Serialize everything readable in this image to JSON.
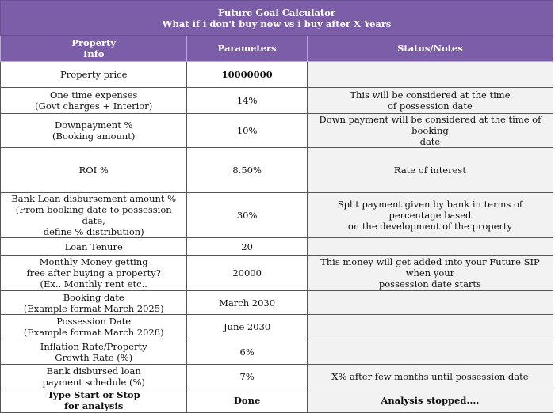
{
  "title_line1": "Future Goal Calculator",
  "title_line2": "What if i don't buy now vs i buy after X Years",
  "headers": {
    "col1": "Property\nInfo",
    "col2": "Parameters",
    "col3": "Status/Notes"
  },
  "rows": [
    {
      "info": "Property price",
      "param": "10000000",
      "note": ""
    },
    {
      "info": "One time expenses\n(Govt charges + Interior)",
      "param": "14%",
      "note": "This will be considered at the time\nof possession date"
    },
    {
      "info": "Downpayment %\n(Booking amount)",
      "param": "10%",
      "note": "Down payment will be considered at the time of booking\ndate"
    },
    {
      "info": "ROI %",
      "param": "8.50%",
      "note": "Rate of interest"
    },
    {
      "info": "Bank Loan disbursement amount %\n(From booking date to possession date,\ndefine % distribution)",
      "param": "30%",
      "note": "Split payment given by bank in terms of percentage based\non the development of the property"
    },
    {
      "info": "Loan Tenure",
      "param": "20",
      "note": ""
    },
    {
      "info": "Monthly Money getting\nfree after buying a property?\n(Ex.. Monthly rent etc..",
      "param": "20000",
      "note": "This money will get added into your Future SIP when your\npossession date starts"
    },
    {
      "info": "Booking date\n(Example format March 2025)",
      "param": "March 2030",
      "note": ""
    },
    {
      "info": "Possession Date\n(Example format March 2028)",
      "param": "June 2030",
      "note": ""
    },
    {
      "info": "Inflation Rate/Property\nGrowth Rate (%)",
      "param": "6%",
      "note": ""
    },
    {
      "info": "Bank disbursed loan\npayment schedule (%)",
      "param": "7%",
      "note": "X% after few months until possession date"
    },
    {
      "info": "Type Start or Stop\nfor analysis",
      "param": "Done",
      "note": "Analysis stopped...."
    }
  ]
}
